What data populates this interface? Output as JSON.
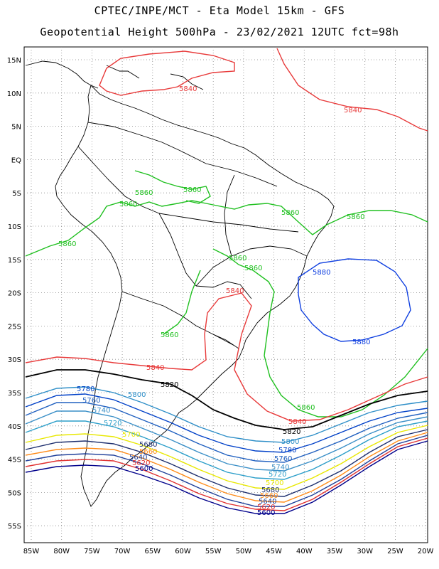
{
  "title": {
    "line1": "CPTEC/INPE/MCT -  Eta Model 15km - GFS",
    "line2": "Geopotential Height 500hPa - 23/02/2021 12UTC fct=98h"
  },
  "axes": {
    "lat_labels": [
      "15N",
      "10N",
      "5N",
      "EQ",
      "5S",
      "10S",
      "15S",
      "20S",
      "25S",
      "30S",
      "35S",
      "40S",
      "45S",
      "50S",
      "55S"
    ],
    "lon_labels": [
      "85W",
      "80W",
      "75W",
      "70W",
      "65W",
      "60W",
      "55W",
      "50W",
      "45W",
      "40W",
      "35W",
      "30W",
      "25W",
      "20W"
    ],
    "grid": "dotted"
  },
  "colors": {
    "5600": "#00008b",
    "5620": "#e03030",
    "5640": "#20409a",
    "5660": "#ff8c1a",
    "5680": "#1e2f6e",
    "5700": "#e8e800",
    "5720": "#2b9ec9",
    "5740": "#3a8fc7",
    "5760": "#2060c0",
    "5780": "#0040c8",
    "5800": "#2f8fc8",
    "5820": "#000000",
    "5840": "#e83a3a",
    "5860": "#20c020",
    "5880": "#1040e0"
  },
  "contour_labels": [
    {
      "text": "5840",
      "level": "5840"
    },
    {
      "text": "5840",
      "level": "5840"
    },
    {
      "text": "5860",
      "level": "5860"
    },
    {
      "text": "5860",
      "level": "5860"
    },
    {
      "text": "5860",
      "level": "5860"
    },
    {
      "text": "5860",
      "level": "5860"
    },
    {
      "text": "5860",
      "level": "5860"
    },
    {
      "text": "5860",
      "level": "5860"
    },
    {
      "text": "5860",
      "level": "5860"
    },
    {
      "text": "5860",
      "level": "5860"
    },
    {
      "text": "5880",
      "level": "5880"
    },
    {
      "text": "5840",
      "level": "5840"
    },
    {
      "text": "5880",
      "level": "5880"
    },
    {
      "text": "5860",
      "level": "5860"
    },
    {
      "text": "5840",
      "level": "5840"
    },
    {
      "text": "5820",
      "level": "5820"
    },
    {
      "text": "5780",
      "level": "5780"
    },
    {
      "text": "5800",
      "level": "5800"
    },
    {
      "text": "5760",
      "level": "5760"
    },
    {
      "text": "5740",
      "level": "5740"
    },
    {
      "text": "5720",
      "level": "5720"
    },
    {
      "text": "5700",
      "level": "5700"
    },
    {
      "text": "5680",
      "level": "5680"
    },
    {
      "text": "5660",
      "level": "5660"
    },
    {
      "text": "5640",
      "level": "5640"
    },
    {
      "text": "5620",
      "level": "5620"
    },
    {
      "text": "5600",
      "level": "5600"
    },
    {
      "text": "5860",
      "level": "5860"
    },
    {
      "text": "5840",
      "level": "5840"
    },
    {
      "text": "5820",
      "level": "5820"
    },
    {
      "text": "5800",
      "level": "5800"
    },
    {
      "text": "5780",
      "level": "5780"
    },
    {
      "text": "5760",
      "level": "5760"
    },
    {
      "text": "5740",
      "level": "5740"
    },
    {
      "text": "5720",
      "level": "5720"
    },
    {
      "text": "5700",
      "level": "5700"
    },
    {
      "text": "5680",
      "level": "5680"
    },
    {
      "text": "5660",
      "level": "5660"
    },
    {
      "text": "5640",
      "level": "5640"
    },
    {
      "text": "5620",
      "level": "5620"
    },
    {
      "text": "5600",
      "level": "5600"
    }
  ]
}
